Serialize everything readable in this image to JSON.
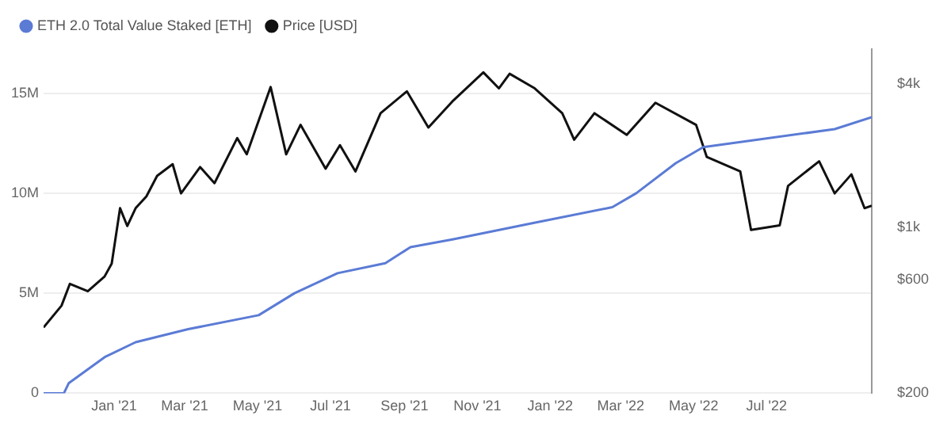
{
  "chart_data": {
    "type": "line",
    "legend": "top left",
    "grid": "y",
    "log": "y2",
    "marker": "none",
    "xlim": [
      "2020-11-03",
      "2022-09-27"
    ],
    "xticks": [
      {
        "value": "2021-01-01",
        "label": "Jan '21"
      },
      {
        "value": "2021-03-01",
        "label": "Mar '21"
      },
      {
        "value": "2021-05-01",
        "label": "May '21"
      },
      {
        "value": "2021-07-01",
        "label": "Jul '21"
      },
      {
        "value": "2021-09-01",
        "label": "Sep '21"
      },
      {
        "value": "2021-11-01",
        "label": "Nov '21"
      },
      {
        "value": "2022-01-01",
        "label": "Jan '22"
      },
      {
        "value": "2022-03-01",
        "label": "Mar '22"
      },
      {
        "value": "2022-05-01",
        "label": "May '22"
      },
      {
        "value": "2022-07-01",
        "label": "Jul '22"
      }
    ],
    "ylim": [
      0,
      17200000
    ],
    "yticks": [
      {
        "value": 0,
        "label": "0"
      },
      {
        "value": 5000000,
        "label": "5M"
      },
      {
        "value": 10000000,
        "label": "10M"
      },
      {
        "value": 15000000,
        "label": "15M"
      }
    ],
    "y2lim": [
      200,
      5600
    ],
    "y2ticks": [
      {
        "value": 200,
        "label": "$200"
      },
      {
        "value": 600,
        "label": "$600"
      },
      {
        "value": 1000,
        "label": "$1k"
      },
      {
        "value": 4000,
        "label": "$4k"
      }
    ],
    "series": [
      {
        "name": "ETH 2.0 Total Value Staked [ETH]",
        "color": "#5b7bd5",
        "x": [
          "2020-11-03",
          "2020-11-20",
          "2020-11-24",
          "2020-12-24",
          "2021-01-19",
          "2021-03-04",
          "2021-05-02",
          "2021-06-01",
          "2021-07-07",
          "2021-08-16",
          "2021-09-06",
          "2021-10-12",
          "2021-12-17",
          "2022-02-22",
          "2022-03-14",
          "2022-04-16",
          "2022-05-09",
          "2022-08-27",
          "2022-09-27"
        ],
        "values": [
          0,
          0,
          500000,
          1800000,
          2550000,
          3200000,
          3900000,
          5000000,
          6000000,
          6500000,
          7300000,
          7700000,
          8500000,
          9300000,
          10000000,
          11500000,
          12300000,
          13200000,
          13800000
        ]
      },
      {
        "name": "Price [USD]",
        "color": "#111111",
        "axis": "y2",
        "x": [
          "2020-11-03",
          "2020-11-18",
          "2020-11-25",
          "2020-12-10",
          "2020-12-24",
          "2020-12-30",
          "2021-01-06",
          "2021-01-12",
          "2021-01-19",
          "2021-01-28",
          "2021-02-06",
          "2021-02-19",
          "2021-02-26",
          "2021-03-14",
          "2021-03-26",
          "2021-04-14",
          "2021-04-22",
          "2021-05-12",
          "2021-05-25",
          "2021-06-06",
          "2021-06-27",
          "2021-07-09",
          "2021-07-22",
          "2021-08-12",
          "2021-09-03",
          "2021-09-21",
          "2021-10-11",
          "2021-11-06",
          "2021-11-19",
          "2021-11-28",
          "2021-12-19",
          "2022-01-11",
          "2022-01-21",
          "2022-02-07",
          "2022-03-06",
          "2022-03-30",
          "2022-05-03",
          "2022-05-12",
          "2022-06-09",
          "2022-06-18",
          "2022-07-12",
          "2022-07-19",
          "2022-08-14",
          "2022-08-27",
          "2022-09-10",
          "2022-09-21",
          "2022-09-27"
        ],
        "values": [
          378,
          467,
          577,
          537,
          619,
          702,
          1200,
          1010,
          1200,
          1345,
          1642,
          1838,
          1385,
          1787,
          1529,
          2365,
          2022,
          3880,
          2022,
          2690,
          1760,
          2210,
          1713,
          3010,
          3720,
          2620,
          3370,
          4470,
          3830,
          4410,
          3830,
          3010,
          2330,
          3010,
          2440,
          3330,
          2690,
          1970,
          1713,
          973,
          1016,
          1490,
          1890,
          1385,
          1665,
          1200,
          1230
        ]
      }
    ]
  }
}
